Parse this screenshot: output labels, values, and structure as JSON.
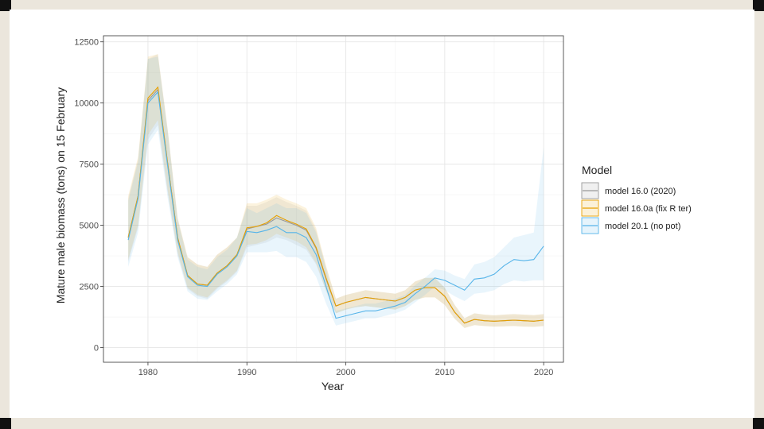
{
  "colors": {
    "model_16_0": "#999999",
    "model_16_0a": "#E69F00",
    "model_20_1": "#56B4E9"
  },
  "chart_data": {
    "type": "line",
    "title": "",
    "xlabel": "Year",
    "ylabel": "Mature male biomass (tons) on 15 February",
    "xlim": [
      1975.5,
      2022
    ],
    "ylim": [
      -600,
      12750
    ],
    "x_ticks": [
      1980,
      1990,
      2000,
      2010,
      2020
    ],
    "x_tick_labels": [
      "1980",
      "1990",
      "2000",
      "2010",
      "2020"
    ],
    "y_ticks": [
      0,
      2500,
      5000,
      7500,
      10000,
      12500
    ],
    "y_tick_labels": [
      "0",
      "2500",
      "5000",
      "7500",
      "10000",
      "12500"
    ],
    "grid": true,
    "legend": {
      "title": "Model",
      "placement": "right",
      "entries": [
        "model 16.0 (2020)",
        "model 16.0a (fix R ter)",
        "model 20.1 (no pot)"
      ]
    },
    "series": [
      {
        "name": "model 16.0 (2020)",
        "color": "#999999",
        "x": [
          1978,
          1979,
          1980,
          1981,
          1982,
          1983,
          1984,
          1985,
          1986,
          1987,
          1988,
          1989,
          1990,
          1991,
          1992,
          1993,
          1994,
          1995,
          1996,
          1997,
          1998,
          1999,
          2000,
          2001,
          2002,
          2003,
          2004,
          2005,
          2006,
          2007,
          2008,
          2009,
          2010,
          2011,
          2012,
          2013,
          2014,
          2015,
          2016,
          2017,
          2018,
          2019,
          2020
        ],
        "values": [
          4500,
          6200,
          10100,
          10550,
          7500,
          4500,
          2950,
          2600,
          2550,
          3050,
          3350,
          3800,
          4850,
          4950,
          5050,
          5300,
          5150,
          5000,
          4800,
          4050,
          2800,
          1700,
          1850,
          1950,
          2050,
          2000,
          1950,
          1900,
          2050,
          2350,
          2450,
          2450,
          2100,
          1450,
          1000,
          1150,
          1100,
          1080,
          1100,
          1120,
          1100,
          1080,
          1120
        ],
        "lower": [
          3500,
          4900,
          8500,
          9100,
          6300,
          3800,
          2400,
          2100,
          2000,
          2400,
          2700,
          3100,
          4100,
          4200,
          4300,
          4500,
          4400,
          4200,
          4000,
          3400,
          2300,
          1400,
          1550,
          1650,
          1700,
          1650,
          1600,
          1550,
          1700,
          1950,
          2050,
          2050,
          1750,
          1180,
          800,
          920,
          880,
          860,
          870,
          880,
          860,
          850,
          880
        ],
        "upper": [
          6100,
          7700,
          11800,
          12000,
          8900,
          5300,
          3700,
          3400,
          3300,
          3800,
          4100,
          4500,
          5800,
          5800,
          5950,
          6150,
          5950,
          5800,
          5600,
          4800,
          3300,
          2000,
          2150,
          2250,
          2350,
          2300,
          2250,
          2200,
          2350,
          2700,
          2850,
          2850,
          2450,
          1750,
          1200,
          1400,
          1350,
          1320,
          1350,
          1370,
          1350,
          1330,
          1370
        ]
      },
      {
        "name": "model 16.0a (fix R ter)",
        "color": "#E69F00",
        "x": [
          1978,
          1979,
          1980,
          1981,
          1982,
          1983,
          1984,
          1985,
          1986,
          1987,
          1988,
          1989,
          1990,
          1991,
          1992,
          1993,
          1994,
          1995,
          1996,
          1997,
          1998,
          1999,
          2000,
          2001,
          2002,
          2003,
          2004,
          2005,
          2006,
          2007,
          2008,
          2009,
          2010,
          2011,
          2012,
          2013,
          2014,
          2015,
          2016,
          2017,
          2018,
          2019,
          2020
        ],
        "values": [
          4500,
          6200,
          10200,
          10650,
          7500,
          4500,
          2950,
          2600,
          2550,
          3050,
          3350,
          3800,
          4900,
          4950,
          5100,
          5400,
          5200,
          5050,
          4850,
          4100,
          2850,
          1700,
          1850,
          1950,
          2050,
          2000,
          1950,
          1900,
          2050,
          2350,
          2450,
          2450,
          2100,
          1450,
          1000,
          1150,
          1100,
          1080,
          1100,
          1120,
          1100,
          1080,
          1120
        ],
        "lower": [
          3600,
          5000,
          8700,
          9300,
          6400,
          3900,
          2450,
          2150,
          2050,
          2450,
          2750,
          3150,
          4200,
          4250,
          4400,
          4650,
          4500,
          4350,
          4100,
          3450,
          2350,
          1400,
          1550,
          1650,
          1700,
          1650,
          1600,
          1550,
          1700,
          1950,
          2050,
          2050,
          1750,
          1180,
          800,
          920,
          880,
          860,
          870,
          880,
          860,
          850,
          880
        ],
        "upper": [
          6200,
          7800,
          11900,
          12000,
          8900,
          5300,
          3700,
          3400,
          3300,
          3800,
          4100,
          4500,
          5900,
          5900,
          6050,
          6250,
          6050,
          5900,
          5700,
          4900,
          3350,
          2000,
          2150,
          2250,
          2350,
          2300,
          2250,
          2200,
          2350,
          2700,
          2850,
          2850,
          2450,
          1750,
          1200,
          1400,
          1350,
          1320,
          1350,
          1370,
          1350,
          1330,
          1370
        ]
      },
      {
        "name": "model 20.1 (no pot)",
        "color": "#56B4E9",
        "x": [
          1978,
          1979,
          1980,
          1981,
          1982,
          1983,
          1984,
          1985,
          1986,
          1987,
          1988,
          1989,
          1990,
          1991,
          1992,
          1993,
          1994,
          1995,
          1996,
          1997,
          1998,
          1999,
          2000,
          2001,
          2002,
          2003,
          2004,
          2005,
          2006,
          2007,
          2008,
          2009,
          2010,
          2011,
          2012,
          2013,
          2014,
          2015,
          2016,
          2017,
          2018,
          2019,
          2020
        ],
        "values": [
          4400,
          6100,
          10000,
          10450,
          7400,
          4400,
          2900,
          2550,
          2500,
          3000,
          3300,
          3750,
          4750,
          4700,
          4800,
          4950,
          4700,
          4700,
          4500,
          3800,
          2500,
          1200,
          1300,
          1400,
          1500,
          1500,
          1600,
          1700,
          1850,
          2200,
          2500,
          2850,
          2750,
          2550,
          2350,
          2800,
          2850,
          3000,
          3350,
          3600,
          3550,
          3600,
          4150
        ],
        "lower": [
          3300,
          4700,
          8300,
          8900,
          6100,
          3700,
          2300,
          2000,
          1950,
          2300,
          2600,
          3000,
          3900,
          3900,
          3900,
          3950,
          3700,
          3700,
          3500,
          2900,
          1800,
          900,
          1000,
          1100,
          1200,
          1200,
          1300,
          1400,
          1550,
          1850,
          2150,
          2500,
          2350,
          2100,
          1900,
          2200,
          2250,
          2350,
          2600,
          2750,
          2700,
          2750,
          2750
        ],
        "upper": [
          6000,
          7600,
          11800,
          11900,
          8800,
          5200,
          3600,
          3300,
          3200,
          3700,
          4000,
          4500,
          5700,
          5500,
          5700,
          5900,
          5700,
          5700,
          5500,
          4700,
          3200,
          1500,
          1600,
          1700,
          1800,
          1800,
          1900,
          2000,
          2150,
          2550,
          2850,
          3200,
          3150,
          2950,
          2800,
          3400,
          3500,
          3700,
          4100,
          4500,
          4600,
          4700,
          8200
        ]
      }
    ]
  }
}
